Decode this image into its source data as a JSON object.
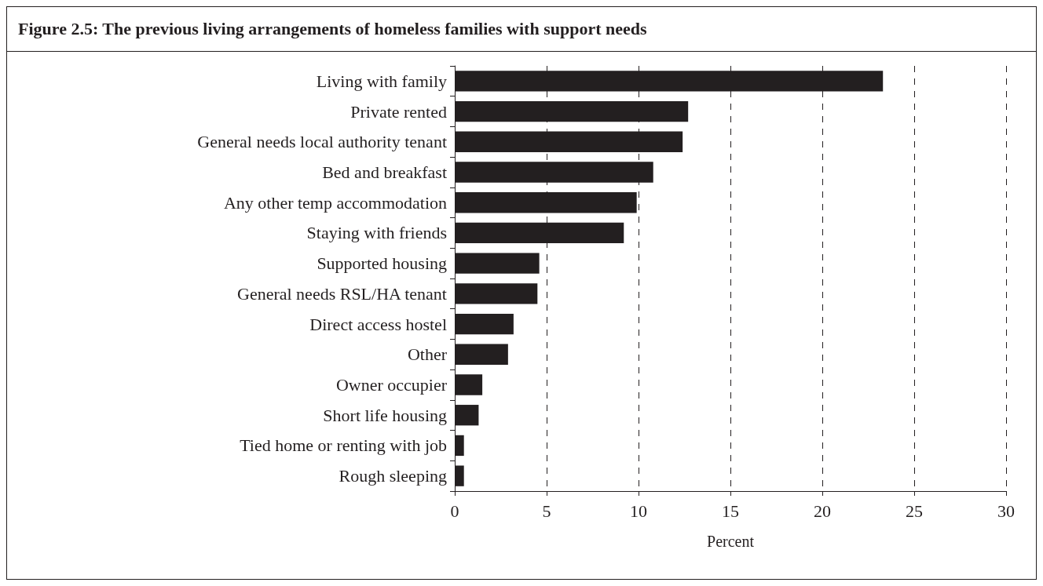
{
  "chart_data": {
    "type": "bar",
    "orientation": "horizontal",
    "title": "Figure 2.5: The previous living arrangements of homeless families with support needs",
    "xlabel": "Percent",
    "categories": [
      "Living with family",
      "Private rented",
      "General needs local authority tenant",
      "Bed and breakfast",
      "Any other temp accommodation",
      "Staying with friends",
      "Supported housing",
      "General needs RSL/HA tenant",
      "Direct access hostel",
      "Other",
      "Owner occupier",
      "Short life housing",
      "Tied home or renting with job",
      "Rough sleeping"
    ],
    "values": [
      23.3,
      12.7,
      12.4,
      10.8,
      9.9,
      9.2,
      4.6,
      4.5,
      3.2,
      2.9,
      1.5,
      1.3,
      0.5,
      0.5
    ],
    "color": "#231f20",
    "xlim": [
      0,
      30
    ],
    "xticks": [
      0,
      5,
      10,
      15,
      20,
      25,
      30
    ],
    "grid": "x"
  }
}
